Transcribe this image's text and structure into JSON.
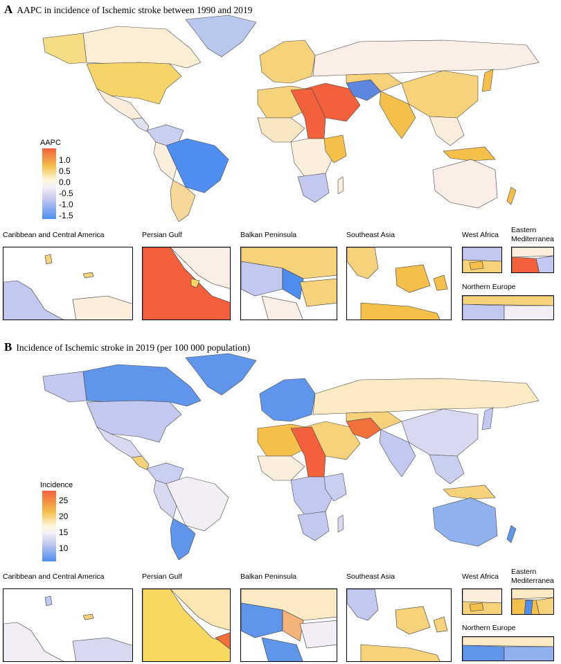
{
  "panel_a": {
    "letter": "A",
    "title": "AAPC in incidence of Ischemic stroke between 1990 and 2019",
    "legend": {
      "title": "AAPC",
      "ticks": [
        "1.0",
        "0.5",
        "0.0",
        "-0.5",
        "-1.0",
        "-1.5"
      ],
      "colors": [
        "#f2603c",
        "#f5c04a",
        "#fff7dc",
        "#f3eef6",
        "#c2c8f0",
        "#4d8ef0"
      ]
    }
  },
  "panel_b": {
    "letter": "B",
    "title": "Incidence of Ischemic stroke in 2019 (per 100 000 population)",
    "legend": {
      "title": "Incidence",
      "ticks": [
        "25",
        "20",
        "15",
        "10"
      ],
      "colors": [
        "#f2603c",
        "#f5c04a",
        "#fff7dc",
        "#f3eef6",
        "#c2c8f0",
        "#4d8ef0"
      ]
    }
  },
  "insets": {
    "caribbean": "Caribbean and Central America",
    "persian_gulf": "Persian Gulf",
    "balkan": "Balkan Peninsula",
    "southeast_asia": "Southeast Asia",
    "west_africa": "West Africa",
    "eastern_med": "Eastern Mediterranea",
    "northern_europe": "Northern Europe"
  }
}
